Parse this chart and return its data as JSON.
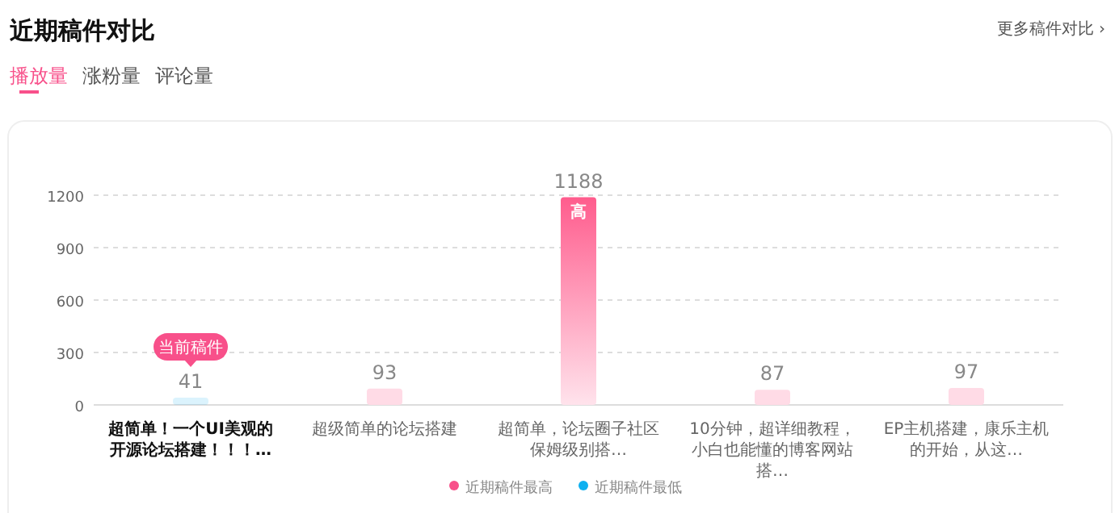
{
  "chart_data": {
    "type": "bar",
    "title": "近期稿件对比",
    "stacked": true,
    "categories": [
      "超简单！一个UI美观的开源论坛搭建！！！…",
      "超级简单的论坛搭建",
      "超简单，论坛圈子社区保姆级别搭…",
      "10分钟，超详细教程，小白也能懂的博客网站搭…",
      "EP主机搭建，康乐主机的开始，从这…"
    ],
    "series": [
      {
        "name": "近期稿件最高",
        "color": "#f8508a",
        "colors": [
          null,
          "#ffdbe6",
          "#ff5c8d",
          "#ffdbe6",
          "#ffdbe6"
        ],
        "values": [
          null,
          93,
          1188,
          87,
          97
        ]
      },
      {
        "name": "近期稿件最低",
        "color": "#0eb0f0",
        "values": [
          41,
          null,
          null,
          null,
          null
        ]
      }
    ],
    "ylim": [
      0,
      1200
    ],
    "yticks": [
      0,
      300,
      600,
      900,
      1200
    ],
    "grid": "y",
    "data_labels": true,
    "legend": "bottom",
    "annotations": [
      "更多稿件对比 ›",
      "播放量",
      "涨粉量",
      "评论量",
      {
        "text": "当前稿件",
        "x": "超简单！一个UI美观的开源论坛搭建！！！…",
        "y": 41
      },
      {
        "text": "高",
        "x": "超简单，论坛圈子社区保姆级别搭…",
        "y": 1188
      }
    ]
  }
}
